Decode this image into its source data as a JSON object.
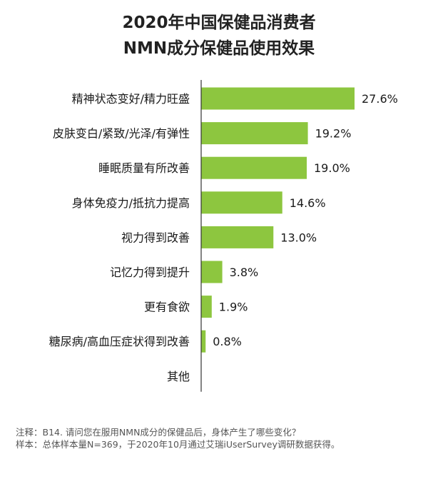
{
  "title_lines": [
    "2020年中国保健品消费者",
    "NMN成分保健品使用效果"
  ],
  "chart_data": {
    "type": "bar",
    "orientation": "horizontal",
    "categories": [
      "精神状态变好/精力旺盛",
      "皮肤变白/紧致/光泽/有弹性",
      "睡眠质量有所改善",
      "身体免疫力/抵抗力提高",
      "视力得到改善",
      "记忆力得到提升",
      "更有食欲",
      "糖尿病/高血压症状得到改善",
      "其他"
    ],
    "values": [
      27.6,
      19.2,
      19.0,
      14.6,
      13.0,
      3.8,
      1.9,
      0.8,
      null
    ],
    "value_labels": [
      "27.6%",
      "19.2%",
      "19.0%",
      "14.6%",
      "13.0%",
      "3.8%",
      "1.9%",
      "0.8%",
      ""
    ],
    "bar_color": "#8dc63f",
    "axis_color": "#333333",
    "xlim": [
      0,
      27.6
    ]
  },
  "notes": {
    "line1": "注释：B14. 请问您在服用NMN成分的保健品后，身体产生了哪些变化？",
    "line2": "样本：总体样本量N=369，于2020年10月通过艾瑞iUserSurvey调研数据获得。"
  }
}
